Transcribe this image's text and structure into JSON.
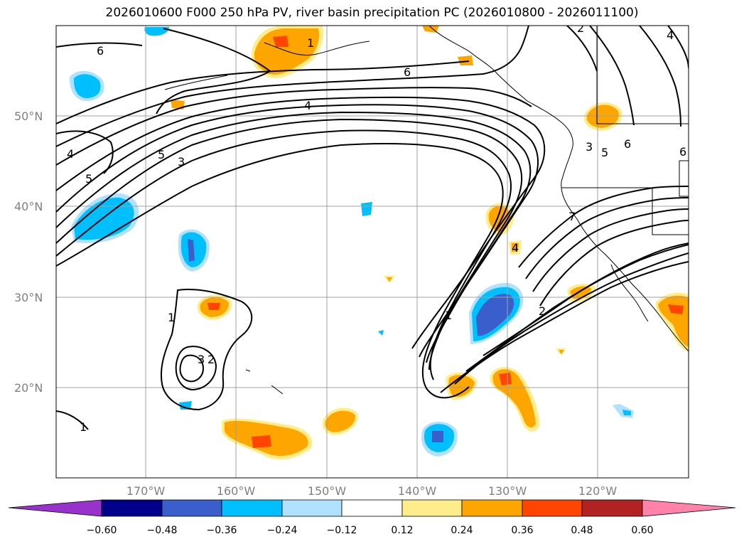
{
  "title": "2026010600 F000 250 hPa PV, river basin precipitation PC (2026010800 - 2026011100)",
  "colors": {
    "neg_060": "#9932cc",
    "neg_048": "#00008b",
    "neg_036": "#3a5fcd",
    "neg_024": "#00bfff",
    "neg_012": "#b0e2ff",
    "neutral": "#ffffff",
    "pos_012": "#ffec8b",
    "pos_024": "#ffa500",
    "pos_036": "#ff4500",
    "pos_048": "#b22222",
    "pos_060": "#ff82ab",
    "grid": "#a0a0a0",
    "contour": "#000000"
  },
  "latitude_labels": [
    "50°N",
    "40°N",
    "30°N",
    "20°N"
  ],
  "longitude_labels": [
    "170°W",
    "160°W",
    "150°W",
    "140°W",
    "130°W",
    "120°W"
  ],
  "colorbar": {
    "labels": [
      "−0.60",
      "−0.48",
      "−0.36",
      "−0.24",
      "−0.12",
      "0.12",
      "0.24",
      "0.36",
      "0.48",
      "0.60"
    ]
  },
  "pv_contour_labels": [
    "6",
    "6",
    "4",
    "5",
    "3",
    "4",
    "5",
    "1",
    "2",
    "3",
    "1",
    "1",
    "2",
    "7",
    "4",
    "3",
    "5",
    "6",
    "6",
    "2",
    "4",
    "1"
  ]
}
